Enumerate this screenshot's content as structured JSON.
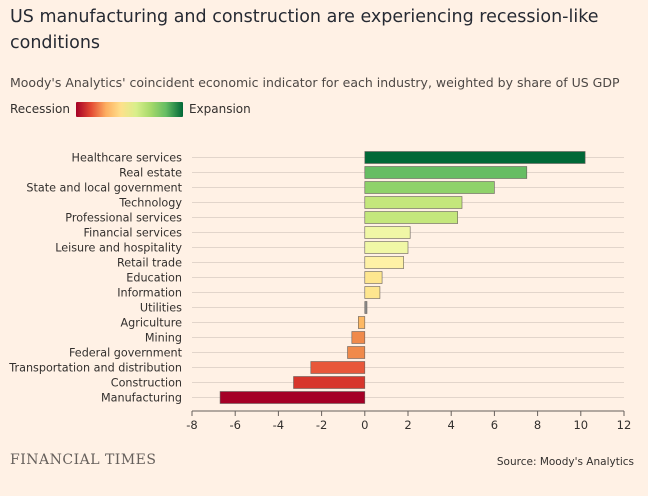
{
  "title": "US manufacturing and construction are experiencing recession-like conditions",
  "subtitle": "Moody's Analytics' coincident economic indicator for each industry, weighted by share of US GDP",
  "legend": {
    "low_label": "Recession",
    "high_label": "Expansion"
  },
  "footer": {
    "brand": "FINANCIAL TIMES",
    "source": "Source: Moody's Analytics"
  },
  "chart_data": {
    "type": "bar",
    "orientation": "horizontal",
    "categories": [
      "Healthcare services",
      "Real estate",
      "State and local government",
      "Technology",
      "Professional services",
      "Financial services",
      "Leisure and hospitality",
      "Retail trade",
      "Education",
      "Information",
      "Utilities",
      "Agriculture",
      "Mining",
      "Federal government",
      "Transportation and distribution",
      "Construction",
      "Manufacturing"
    ],
    "values": [
      10.2,
      7.5,
      6.0,
      4.5,
      4.3,
      2.1,
      2.0,
      1.8,
      0.8,
      0.7,
      0.1,
      -0.3,
      -0.6,
      -0.8,
      -2.5,
      -3.3,
      -6.7
    ],
    "colors": [
      "#006837",
      "#66BD63",
      "#8FD26A",
      "#C4E77C",
      "#C4E77C",
      "#F0F7A6",
      "#F0F7A6",
      "#FEF1A6",
      "#FEE68F",
      "#FEE68F",
      "#8C8C8C",
      "#FDB863",
      "#F08A4B",
      "#F08A4B",
      "#E8573A",
      "#D7362C",
      "#A50026"
    ],
    "xlim": [
      -8,
      12
    ],
    "xticks": [
      "-8",
      "-6",
      "-4",
      "-2",
      "0",
      "2",
      "4",
      "6",
      "8",
      "10",
      "12"
    ],
    "grid": true
  }
}
